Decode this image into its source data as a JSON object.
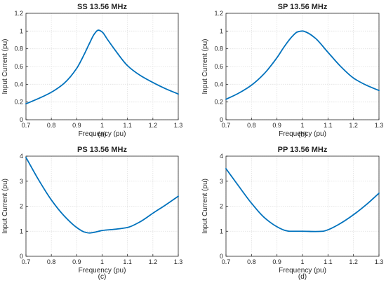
{
  "chart_data": [
    {
      "type": "line",
      "title": "SS 13.56 MHz",
      "xlabel": "Frequency (pu)",
      "ylabel": "Input Current (pu)",
      "caption": "(a)",
      "xlim": [
        0.7,
        1.3
      ],
      "ylim": [
        0,
        1.2
      ],
      "xticks": [
        0.7,
        0.8,
        0.9,
        1,
        1.1,
        1.2,
        1.3
      ],
      "xtick_labels": [
        "0.7",
        "0.8",
        "0.9",
        "1",
        "1.1",
        "1.2",
        "1.3"
      ],
      "yticks": [
        0,
        0.2,
        0.4,
        0.6,
        0.8,
        1,
        1.2
      ],
      "ytick_labels": [
        "0",
        "0.2",
        "0.4",
        "0.6",
        "0.8",
        "1",
        "1.2"
      ],
      "grid": true,
      "color": "#0072BD",
      "series": [
        {
          "x": [
            0.7,
            0.75,
            0.8,
            0.85,
            0.9,
            0.93,
            0.95,
            0.97,
            0.985,
            1.0,
            1.02,
            1.05,
            1.1,
            1.15,
            1.2,
            1.25,
            1.3
          ],
          "values": [
            0.18,
            0.24,
            0.31,
            0.41,
            0.58,
            0.74,
            0.86,
            0.97,
            1.01,
            0.99,
            0.91,
            0.79,
            0.61,
            0.5,
            0.42,
            0.35,
            0.29
          ]
        }
      ]
    },
    {
      "type": "line",
      "title": "SP 13.56 MHz",
      "xlabel": "Frequency (pu)",
      "ylabel": "Input Current (pu)",
      "caption": "(b)",
      "xlim": [
        0.7,
        1.3
      ],
      "ylim": [
        0,
        1.2
      ],
      "xticks": [
        0.7,
        0.8,
        0.9,
        1,
        1.1,
        1.2,
        1.3
      ],
      "xtick_labels": [
        "0.7",
        "0.8",
        "0.9",
        "1",
        "1.1",
        "1.2",
        "1.3"
      ],
      "yticks": [
        0,
        0.2,
        0.4,
        0.6,
        0.8,
        1,
        1.2
      ],
      "ytick_labels": [
        "0",
        "0.2",
        "0.4",
        "0.6",
        "0.8",
        "1",
        "1.2"
      ],
      "grid": true,
      "color": "#0072BD",
      "series": [
        {
          "x": [
            0.7,
            0.75,
            0.8,
            0.85,
            0.9,
            0.93,
            0.96,
            0.98,
            1.0,
            1.02,
            1.05,
            1.1,
            1.15,
            1.2,
            1.25,
            1.3
          ],
          "values": [
            0.23,
            0.3,
            0.39,
            0.52,
            0.7,
            0.83,
            0.94,
            0.99,
            1.0,
            0.98,
            0.92,
            0.76,
            0.6,
            0.47,
            0.39,
            0.33
          ]
        }
      ]
    },
    {
      "type": "line",
      "title": "PS 13.56 MHz",
      "xlabel": "Frequency (pu)",
      "ylabel": "Input Current (pu)",
      "caption": "(c)",
      "xlim": [
        0.7,
        1.3
      ],
      "ylim": [
        0,
        4
      ],
      "xticks": [
        0.7,
        0.8,
        0.9,
        1,
        1.1,
        1.2,
        1.3
      ],
      "xtick_labels": [
        "0.7",
        "0.8",
        "0.9",
        "1",
        "1.1",
        "1.2",
        "1.3"
      ],
      "yticks": [
        0,
        1,
        2,
        3,
        4
      ],
      "ytick_labels": [
        "0",
        "1",
        "2",
        "3",
        "4"
      ],
      "grid": true,
      "color": "#0072BD",
      "series": [
        {
          "x": [
            0.7,
            0.75,
            0.8,
            0.85,
            0.9,
            0.93,
            0.95,
            0.97,
            1.0,
            1.05,
            1.1,
            1.15,
            1.2,
            1.25,
            1.3
          ],
          "values": [
            3.95,
            3.05,
            2.25,
            1.62,
            1.15,
            0.97,
            0.93,
            0.96,
            1.03,
            1.08,
            1.15,
            1.38,
            1.72,
            2.05,
            2.4
          ]
        }
      ]
    },
    {
      "type": "line",
      "title": "PP 13.56 MHz",
      "xlabel": "Frequency (pu)",
      "ylabel": "Input Current (pu)",
      "caption": "(d)",
      "xlim": [
        0.7,
        1.3
      ],
      "ylim": [
        0,
        4
      ],
      "xticks": [
        0.7,
        0.8,
        0.9,
        1,
        1.1,
        1.2,
        1.3
      ],
      "xtick_labels": [
        "0.7",
        "0.8",
        "0.9",
        "1",
        "1.1",
        "1.2",
        "1.3"
      ],
      "yticks": [
        0,
        1,
        2,
        3,
        4
      ],
      "ytick_labels": [
        "0",
        "1",
        "2",
        "3",
        "4"
      ],
      "grid": true,
      "color": "#0072BD",
      "series": [
        {
          "x": [
            0.7,
            0.75,
            0.8,
            0.85,
            0.9,
            0.93,
            0.95,
            1.0,
            1.05,
            1.08,
            1.1,
            1.15,
            1.2,
            1.25,
            1.3
          ],
          "values": [
            3.5,
            2.8,
            2.12,
            1.55,
            1.18,
            1.04,
            1.0,
            1.0,
            0.99,
            1.0,
            1.06,
            1.32,
            1.66,
            2.06,
            2.52
          ]
        }
      ]
    }
  ]
}
